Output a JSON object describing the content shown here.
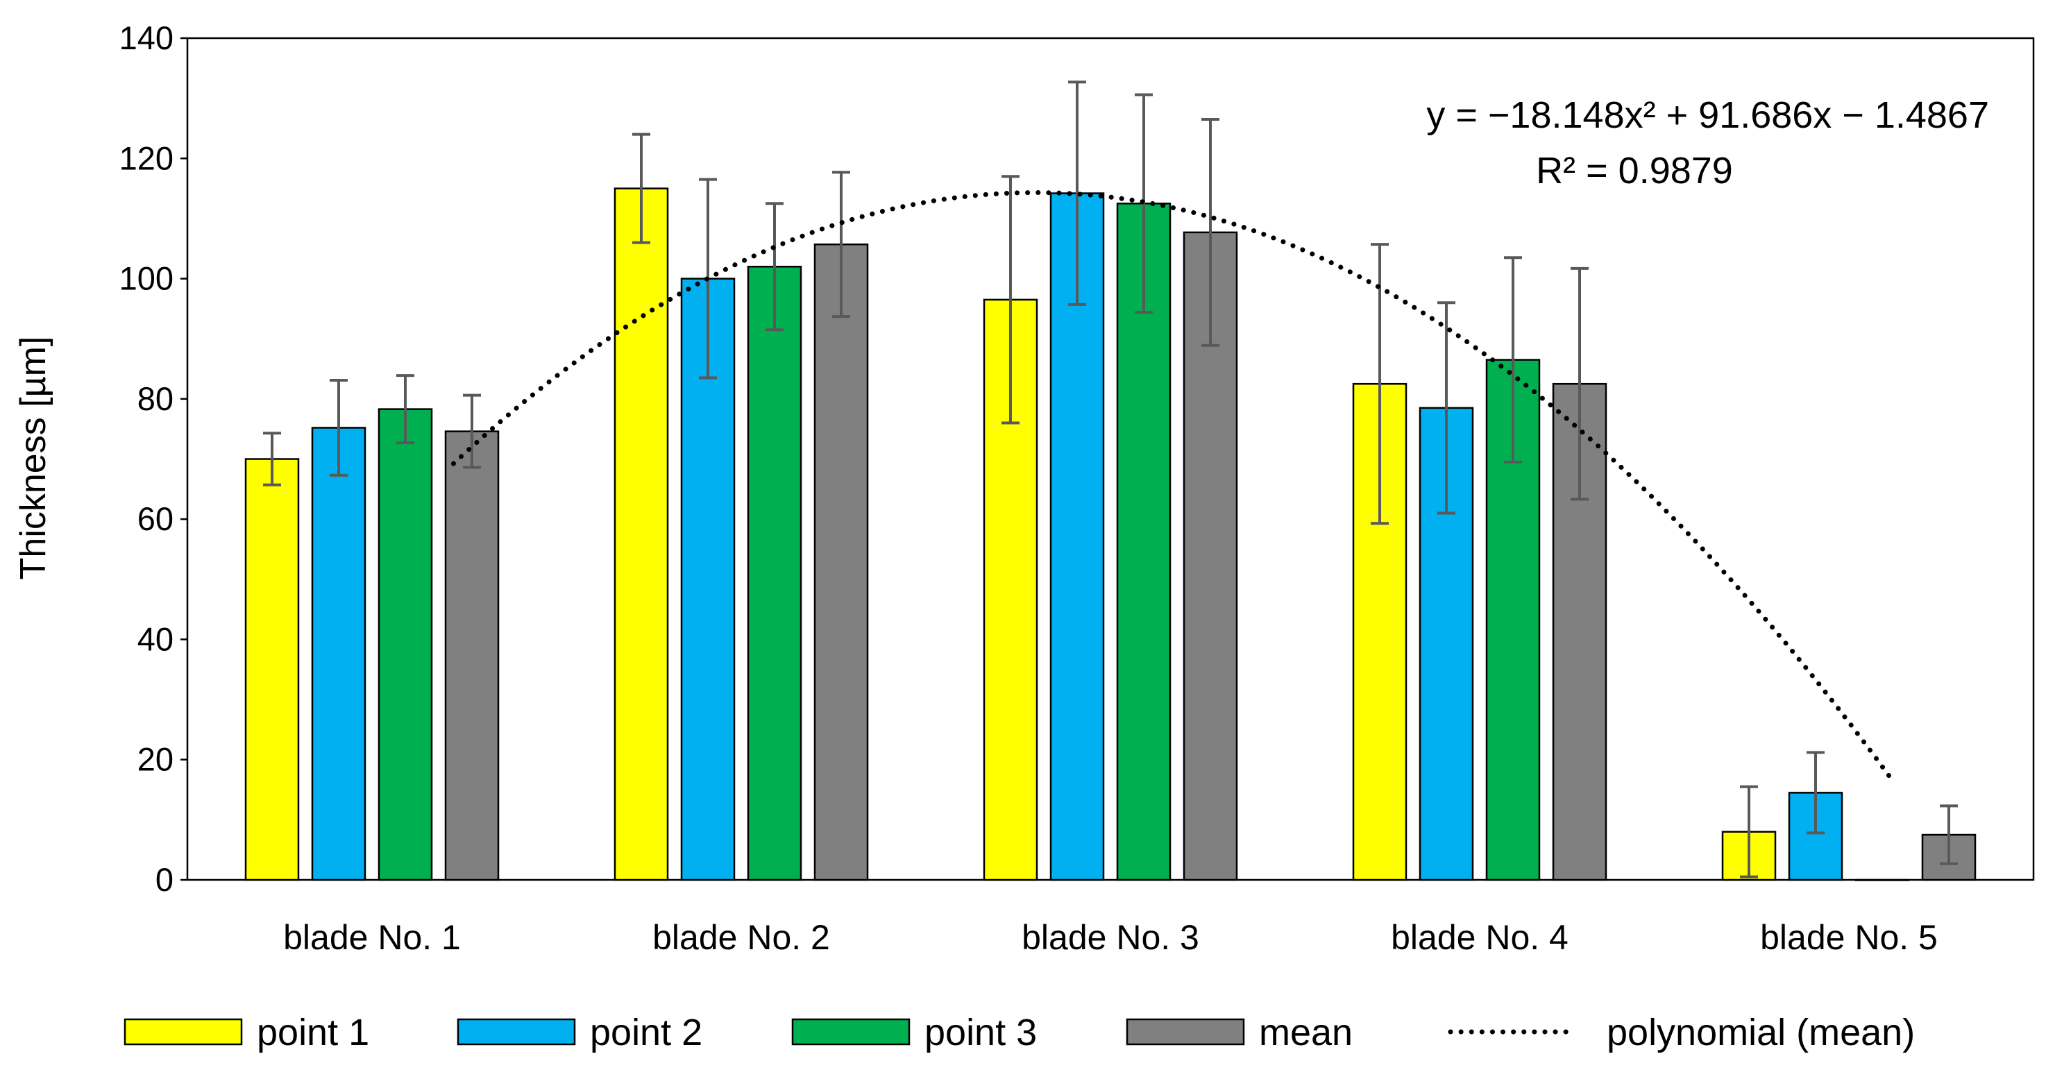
{
  "chart_data": {
    "type": "bar",
    "title": "",
    "xlabel": "",
    "ylabel": "Thickness [µm]",
    "ylim": [
      0,
      140
    ],
    "yticks": [
      0,
      20,
      40,
      60,
      80,
      100,
      120,
      140
    ],
    "grid": false,
    "categories": [
      "blade No. 1",
      "blade No. 2",
      "blade No. 3",
      "blade No. 4",
      "blade No. 5"
    ],
    "series": [
      {
        "name": "point 1",
        "color": "#FFFF00",
        "values": [
          70,
          115,
          96.5,
          82.5,
          8
        ],
        "errors": [
          4.3,
          9,
          20.5,
          23.2,
          7.5
        ]
      },
      {
        "name": "point 2",
        "color": "#00B0F0",
        "values": [
          75.2,
          100,
          114.2,
          78.5,
          14.5
        ],
        "errors": [
          7.9,
          16.5,
          18.5,
          17.5,
          6.7
        ]
      },
      {
        "name": "point 3",
        "color": "#00B050",
        "values": [
          78.3,
          102,
          112.5,
          86.5,
          0
        ],
        "errors": [
          5.6,
          10.5,
          18.1,
          17,
          0
        ]
      },
      {
        "name": "mean",
        "color": "#808080",
        "values": [
          74.6,
          105.7,
          107.7,
          82.5,
          7.5
        ],
        "errors": [
          6,
          12,
          18.8,
          19.2,
          4.8
        ]
      }
    ],
    "trendline": {
      "name": "polynomial (mean)",
      "type": "polynomial",
      "order": 2,
      "coefficients": [
        -18.148,
        91.686,
        -1.4867
      ],
      "equation_label": "y = −18.148x² + 91.686x − 1.4867",
      "r2_label": "R² = 0.9879",
      "style": "dotted"
    },
    "legend": {
      "position": "bottom",
      "entries": [
        "point 1",
        "point 2",
        "point 3",
        "mean",
        "polynomial (mean)"
      ]
    }
  }
}
